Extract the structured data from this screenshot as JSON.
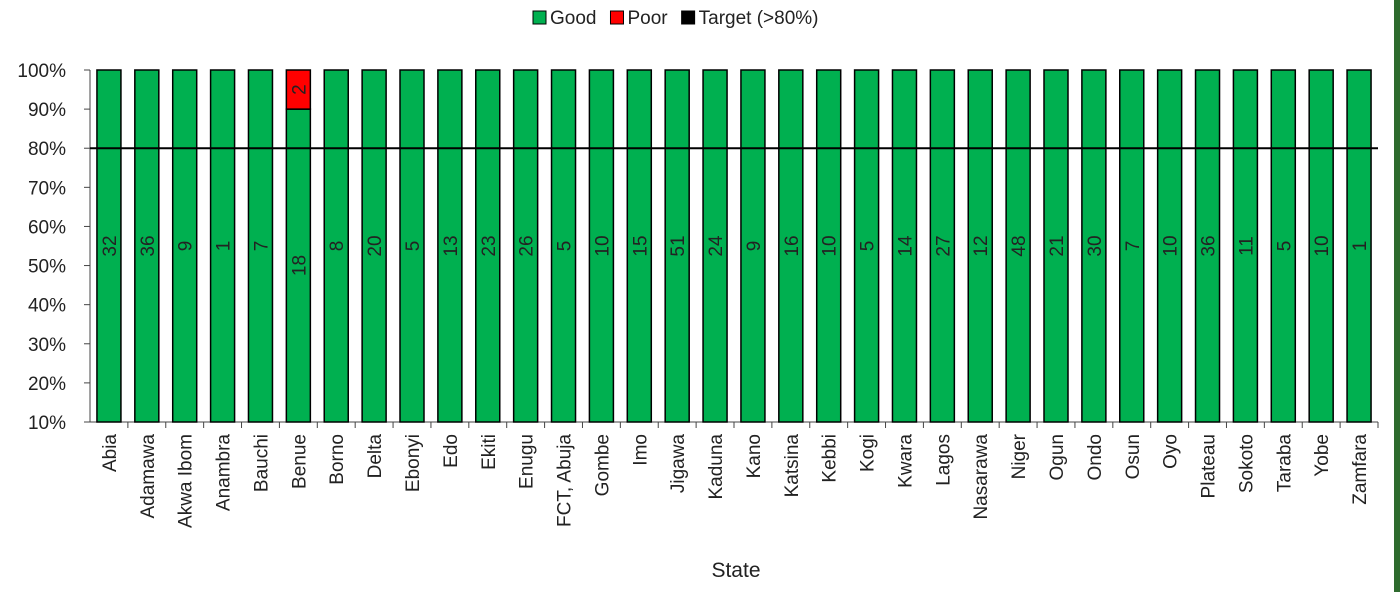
{
  "chart_data": {
    "type": "bar",
    "stacking": "percent",
    "x_label": "State",
    "categories": [
      "Abia",
      "Adamawa",
      "Akwa Ibom",
      "Anambra",
      "Bauchi",
      "Benue",
      "Borno",
      "Delta",
      "Ebonyi",
      "Edo",
      "Ekiti",
      "Enugu",
      "FCT, Abuja",
      "Gombe",
      "Imo",
      "Jigawa",
      "Kaduna",
      "Kano",
      "Katsina",
      "Kebbi",
      "Kogi",
      "Kwara",
      "Lagos",
      "Nasarawa",
      "Niger",
      "Ogun",
      "Ondo",
      "Osun",
      "Oyo",
      "Plateau",
      "Sokoto",
      "Taraba",
      "Yobe",
      "Zamfara"
    ],
    "series": [
      {
        "name": "Good",
        "color": "#00b050",
        "values": [
          32,
          36,
          9,
          1,
          7,
          18,
          8,
          20,
          5,
          13,
          23,
          26,
          5,
          10,
          15,
          51,
          24,
          9,
          16,
          10,
          5,
          14,
          27,
          12,
          48,
          21,
          30,
          7,
          10,
          36,
          11,
          5,
          10,
          1
        ]
      },
      {
        "name": "Poor",
        "color": "#ff0000",
        "values": [
          0,
          0,
          0,
          0,
          0,
          2,
          0,
          0,
          0,
          0,
          0,
          0,
          0,
          0,
          0,
          0,
          0,
          0,
          0,
          0,
          0,
          0,
          0,
          0,
          0,
          0,
          0,
          0,
          0,
          0,
          0,
          0,
          0,
          0
        ]
      }
    ],
    "target": {
      "name": "Target (>80%)",
      "value": 80,
      "color": "#000000"
    },
    "ylim": [
      10,
      100
    ],
    "yticks": [
      {
        "value": 10,
        "label": "10%"
      },
      {
        "value": 20,
        "label": "20%"
      },
      {
        "value": 30,
        "label": "30%"
      },
      {
        "value": 40,
        "label": "40%"
      },
      {
        "value": 50,
        "label": "50%"
      },
      {
        "value": 60,
        "label": "60%"
      },
      {
        "value": 70,
        "label": "70%"
      },
      {
        "value": 80,
        "label": "80%"
      },
      {
        "value": 90,
        "label": "90%"
      },
      {
        "value": 100,
        "label": "100%"
      }
    ],
    "legend": "top"
  }
}
